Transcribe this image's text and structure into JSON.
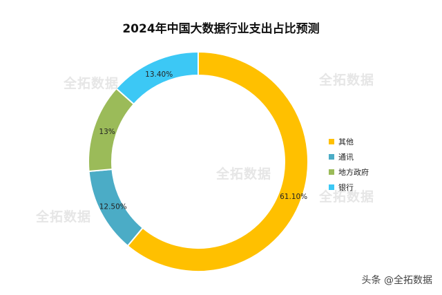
{
  "chart_data": {
    "type": "pie",
    "subtype": "donut",
    "title": "2024年中国大数据行业支出占比预测",
    "slices": [
      {
        "name": "其他",
        "value": 61.1,
        "label": "61.10%",
        "color": "#FFC000"
      },
      {
        "name": "通讯",
        "value": 12.5,
        "label": "12.50%",
        "color": "#4BACC6"
      },
      {
        "name": "地方政府",
        "value": 13.0,
        "label": "13%",
        "color": "#9BBB59"
      },
      {
        "name": "银行",
        "value": 13.4,
        "label": "13.40%",
        "color": "#3CC8F5"
      }
    ],
    "legend_placement": "right"
  },
  "watermarks": [
    "全拓数据",
    "全拓数据",
    "全拓数据",
    "全拓数据",
    "全拓数据"
  ],
  "credit": "头条 @全拓数据"
}
